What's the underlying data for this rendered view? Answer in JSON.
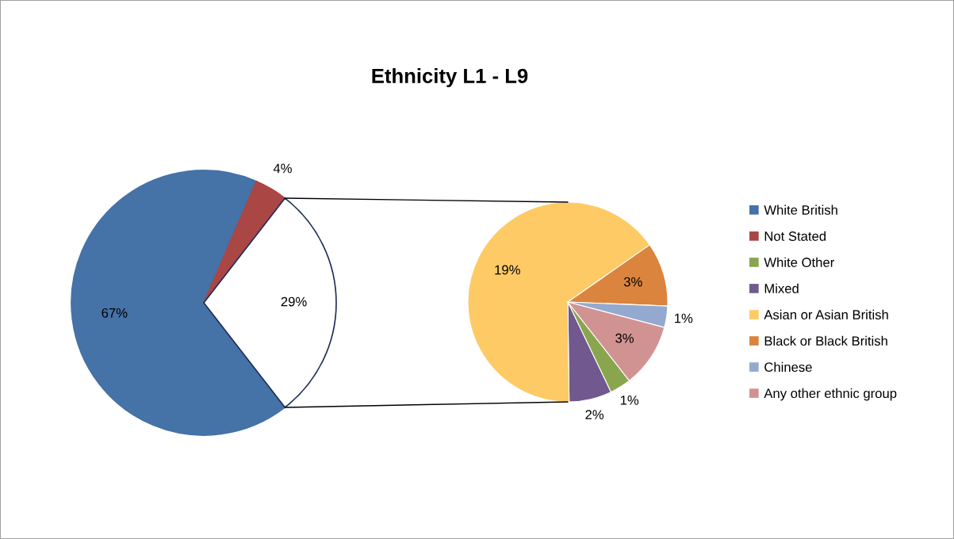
{
  "chart_data": [
    {
      "type": "pie",
      "title": "Ethnicity L1 - L9",
      "categories": [
        "White British",
        "Not Stated",
        null
      ],
      "values": [
        67,
        4,
        29
      ],
      "value_labels": [
        "67%",
        "4%",
        "29%"
      ],
      "colors": [
        "#4572a7",
        "#aa4643",
        "#ffffff"
      ],
      "legend": "right"
    },
    {
      "type": "pie",
      "categories": [
        "White Other",
        "Mixed",
        "Asian or Asian British",
        "Black or Black British",
        "Chinese",
        "Any other ethnic group"
      ],
      "values": [
        1,
        2,
        19,
        3,
        1,
        3
      ],
      "value_labels": [
        "1%",
        "2%",
        "19%",
        "3%",
        "1%",
        "3%"
      ],
      "colors": [
        "#89a54e",
        "#71588f",
        "#fdca65",
        "#db843d",
        "#93a9cf",
        "#d19392"
      ],
      "legend": "right"
    }
  ]
}
